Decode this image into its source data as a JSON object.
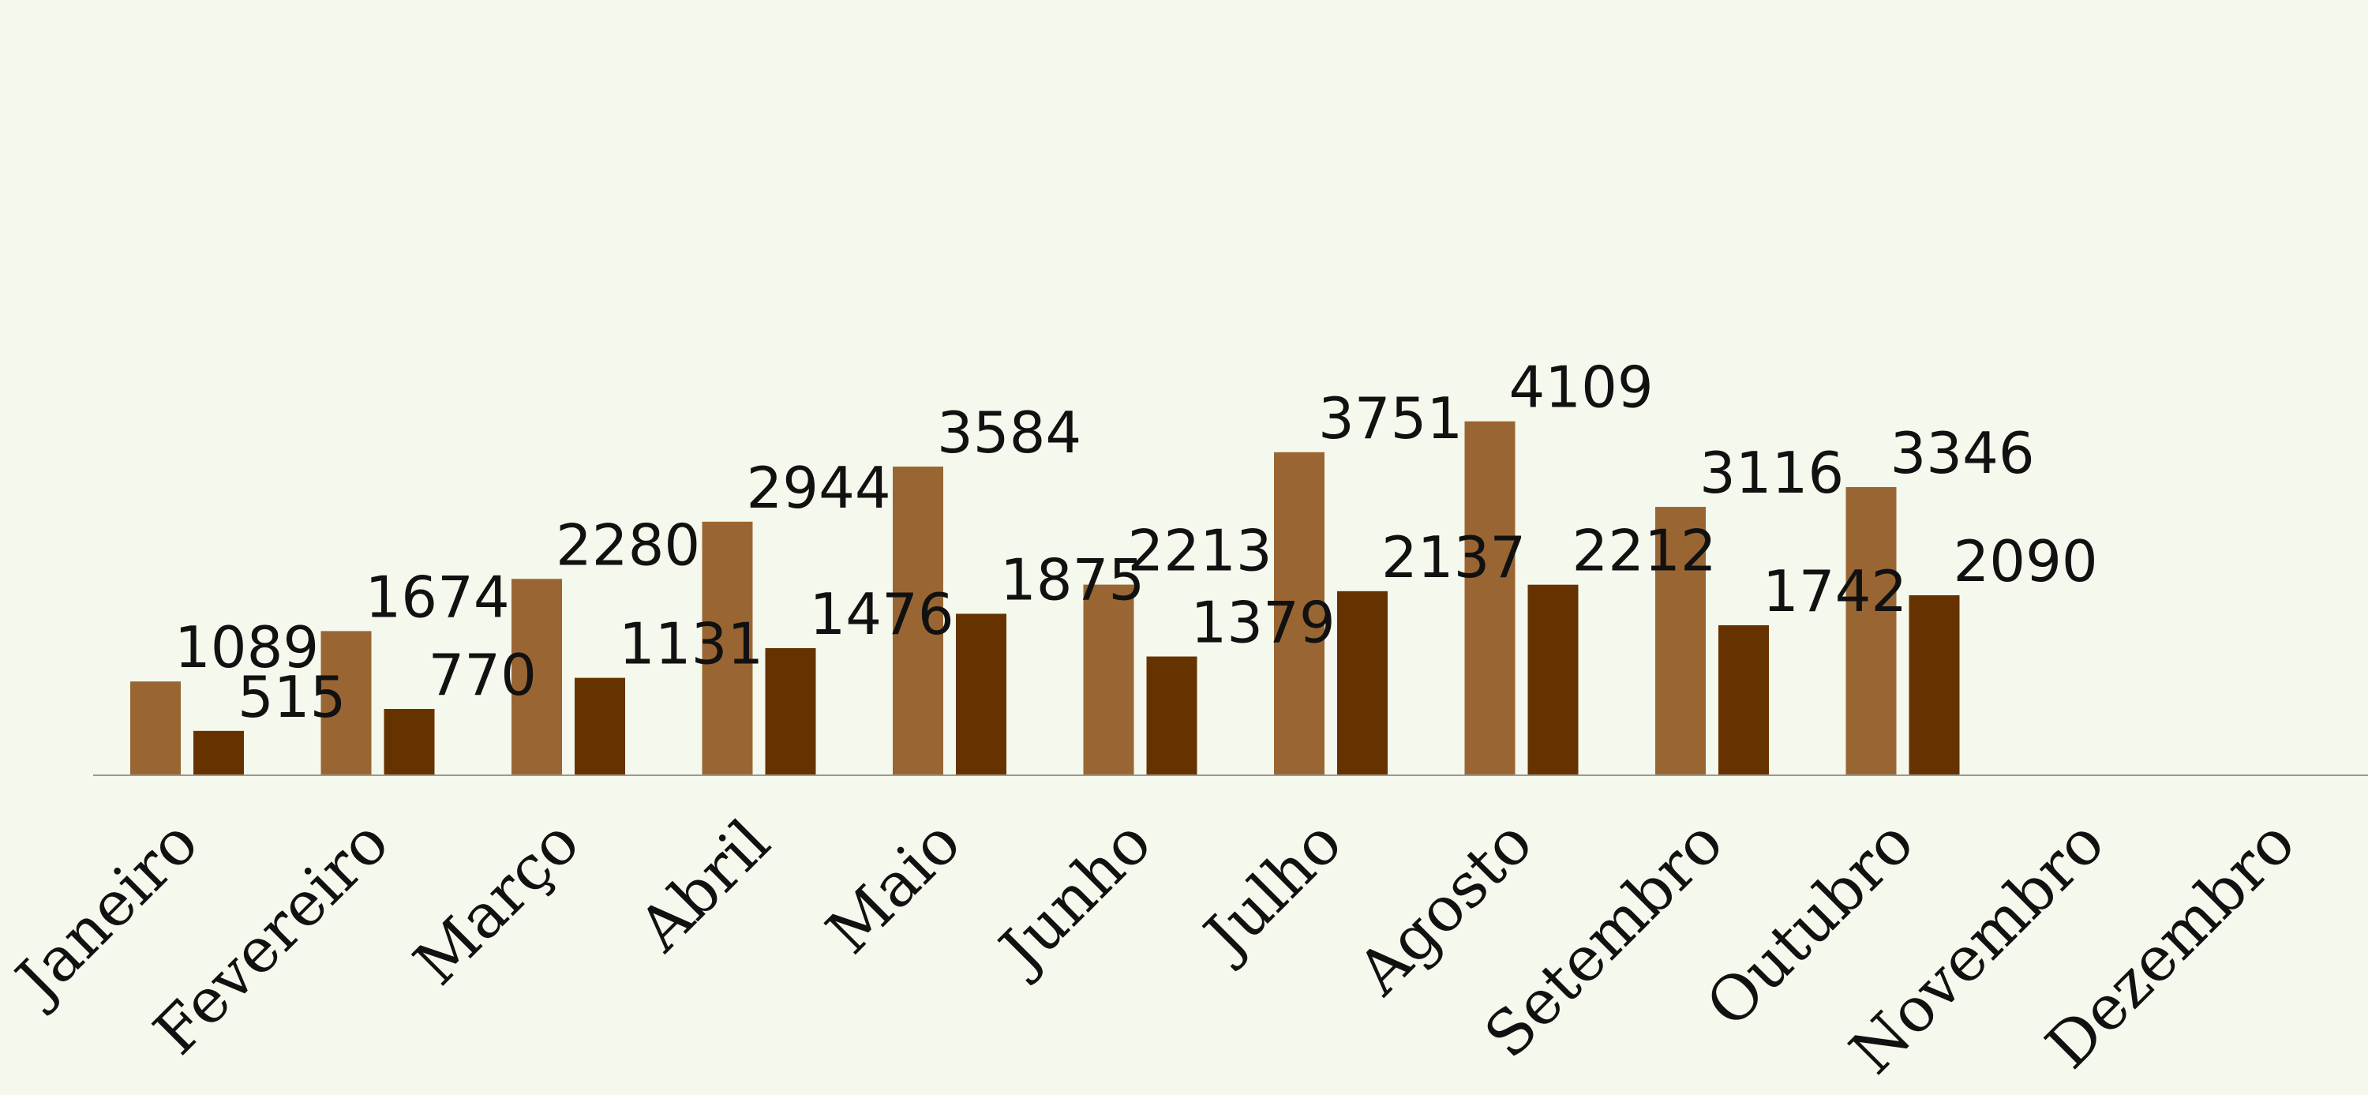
{
  "chart_data": {
    "type": "bar",
    "categories": [
      "Janeiro",
      "Fevereiro",
      "Março",
      "Abril",
      "Maio",
      "Junho",
      "Julho",
      "Agosto",
      "Setembro",
      "Outubro",
      "Novembro",
      "Dezembro"
    ],
    "series": [
      {
        "values": [
          1089,
          1674,
          2280,
          2944,
          3584,
          2213,
          3751,
          4109,
          3116,
          3346,
          null,
          null
        ],
        "color": "#996633"
      },
      {
        "values": [
          515,
          770,
          1131,
          1476,
          1875,
          1379,
          2137,
          2212,
          1742,
          2090,
          null,
          null
        ],
        "color": "#663300"
      }
    ],
    "ylim": [
      0,
      4500
    ],
    "grid": false,
    "legend": "none",
    "axis_color": "#999999"
  }
}
